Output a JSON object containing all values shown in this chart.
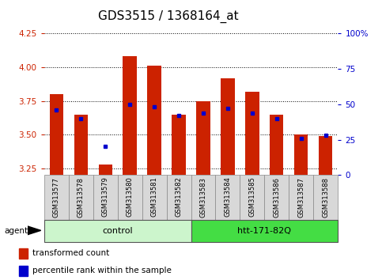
{
  "title": "GDS3515 / 1368164_at",
  "samples": [
    "GSM313577",
    "GSM313578",
    "GSM313579",
    "GSM313580",
    "GSM313581",
    "GSM313582",
    "GSM313583",
    "GSM313584",
    "GSM313585",
    "GSM313586",
    "GSM313587",
    "GSM313588"
  ],
  "bar_values": [
    3.8,
    3.65,
    3.28,
    4.08,
    4.01,
    3.65,
    3.75,
    3.92,
    3.82,
    3.65,
    3.5,
    3.49
  ],
  "percentile_pct": [
    46,
    40,
    20,
    50,
    48,
    42,
    44,
    47,
    44,
    40,
    26,
    28
  ],
  "ymin": 3.2,
  "ymax": 4.25,
  "yticks": [
    3.25,
    3.5,
    3.75,
    4.0,
    4.25
  ],
  "y2min": 0,
  "y2max": 100,
  "y2ticks": [
    0,
    25,
    50,
    75,
    100
  ],
  "bar_color": "#CC2200",
  "dot_color": "#0000CC",
  "ylabel_color": "#CC2200",
  "y2label_color": "#0000CC",
  "control_samples": 6,
  "control_label": "control",
  "htt_label": "htt-171-82Q",
  "control_bg": "#ccf5cc",
  "htt_bg": "#44dd44",
  "agent_label": "agent",
  "legend_items": [
    "transformed count",
    "percentile rank within the sample"
  ],
  "bar_width": 0.55,
  "title_fontsize": 11,
  "tick_fontsize": 7.5,
  "label_fontsize": 7.5
}
